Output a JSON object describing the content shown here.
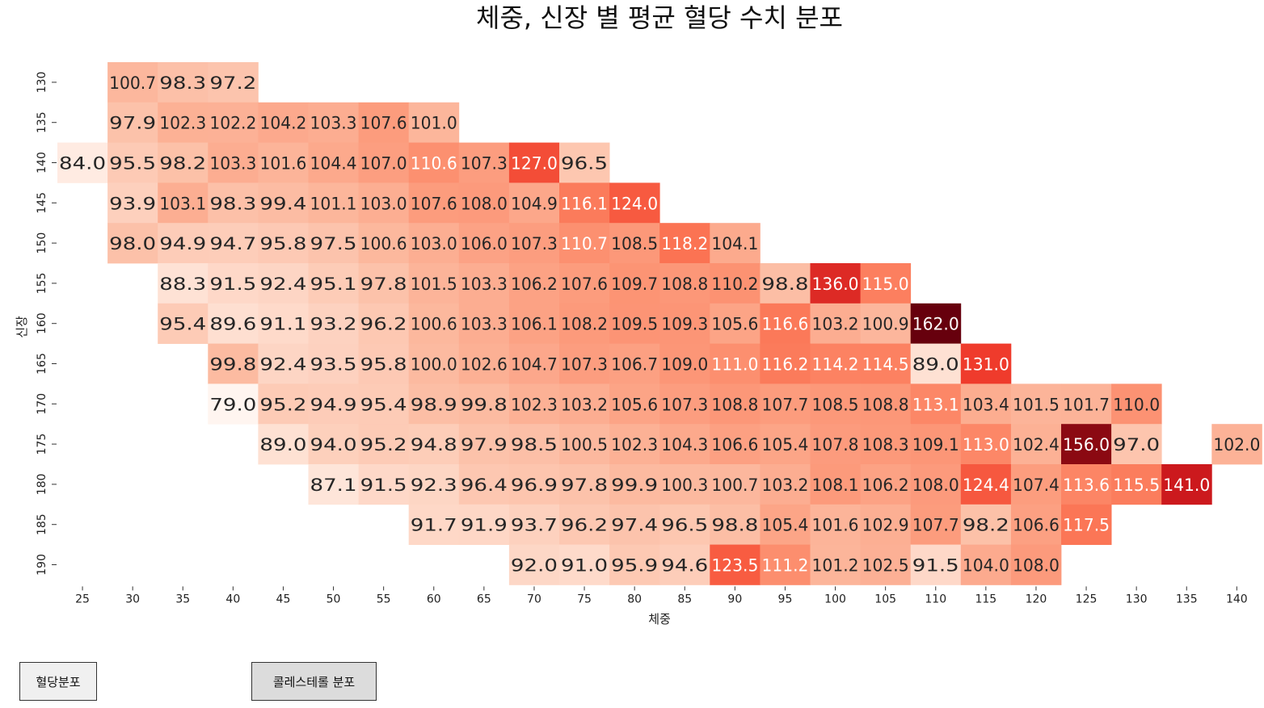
{
  "chart_data": {
    "type": "heatmap",
    "title": "체중, 신장 별 평균 혈당 수치 분포",
    "xlabel": "체중",
    "ylabel": "신장",
    "x": [
      25,
      30,
      35,
      40,
      45,
      50,
      55,
      60,
      65,
      70,
      75,
      80,
      85,
      90,
      95,
      100,
      105,
      110,
      115,
      120,
      125,
      130,
      135,
      140
    ],
    "y": [
      130,
      135,
      140,
      145,
      150,
      155,
      160,
      165,
      170,
      175,
      180,
      185,
      190
    ],
    "colormap": "Reds",
    "value_range": [
      79.0,
      162.0
    ],
    "values": [
      [
        null,
        100.7,
        98.3,
        97.2,
        null,
        null,
        null,
        null,
        null,
        null,
        null,
        null,
        null,
        null,
        null,
        null,
        null,
        null,
        null,
        null,
        null,
        null,
        null,
        null
      ],
      [
        null,
        97.9,
        102.3,
        102.2,
        104.2,
        103.3,
        107.6,
        101.0,
        null,
        null,
        null,
        null,
        null,
        null,
        null,
        null,
        null,
        null,
        null,
        null,
        null,
        null,
        null,
        null
      ],
      [
        84.0,
        95.5,
        98.2,
        103.3,
        101.6,
        104.4,
        107.0,
        110.6,
        107.3,
        127.0,
        96.5,
        null,
        null,
        null,
        null,
        null,
        null,
        null,
        null,
        null,
        null,
        null,
        null,
        null
      ],
      [
        null,
        93.9,
        103.1,
        98.3,
        99.4,
        101.1,
        103.0,
        107.6,
        108.0,
        104.9,
        116.1,
        124.0,
        null,
        null,
        null,
        null,
        null,
        null,
        null,
        null,
        null,
        null,
        null,
        null
      ],
      [
        null,
        98.0,
        94.9,
        94.7,
        95.8,
        97.5,
        100.6,
        103.0,
        106.0,
        107.3,
        110.7,
        108.5,
        118.2,
        104.1,
        null,
        null,
        null,
        null,
        null,
        null,
        null,
        null,
        null,
        null
      ],
      [
        null,
        null,
        88.3,
        91.5,
        92.4,
        95.1,
        97.8,
        101.5,
        103.3,
        106.2,
        107.6,
        109.7,
        108.8,
        110.2,
        98.8,
        136.0,
        115.0,
        null,
        null,
        null,
        null,
        null,
        null,
        null
      ],
      [
        null,
        null,
        95.4,
        89.6,
        91.1,
        93.2,
        96.2,
        100.6,
        103.3,
        106.1,
        108.2,
        109.5,
        109.3,
        105.6,
        116.6,
        103.2,
        100.9,
        162.0,
        null,
        null,
        null,
        null,
        null,
        null
      ],
      [
        null,
        null,
        null,
        99.8,
        92.4,
        93.5,
        95.8,
        100.0,
        102.6,
        104.7,
        107.3,
        106.7,
        109.0,
        111.0,
        116.2,
        114.2,
        114.5,
        89.0,
        131.0,
        null,
        null,
        null,
        null,
        null
      ],
      [
        null,
        null,
        null,
        79.0,
        95.2,
        94.9,
        95.4,
        98.9,
        99.8,
        102.3,
        103.2,
        105.6,
        107.3,
        108.8,
        107.7,
        108.5,
        108.8,
        113.1,
        103.4,
        101.5,
        101.7,
        110.0,
        null,
        null
      ],
      [
        null,
        null,
        null,
        null,
        89.0,
        94.0,
        95.2,
        94.8,
        97.9,
        98.5,
        100.5,
        102.3,
        104.3,
        106.6,
        105.4,
        107.8,
        108.3,
        109.1,
        113.0,
        102.4,
        156.0,
        97.0,
        null,
        102.0
      ],
      [
        null,
        null,
        null,
        null,
        null,
        87.1,
        91.5,
        92.3,
        96.4,
        96.9,
        97.8,
        99.9,
        100.3,
        100.7,
        103.2,
        108.1,
        106.2,
        108.0,
        124.4,
        107.4,
        113.6,
        115.5,
        141.0,
        null
      ],
      [
        null,
        null,
        null,
        null,
        null,
        null,
        null,
        91.7,
        91.9,
        93.7,
        96.2,
        97.4,
        96.5,
        98.8,
        105.4,
        101.6,
        102.9,
        107.7,
        98.2,
        106.6,
        117.5,
        null,
        null,
        null
      ],
      [
        null,
        null,
        null,
        null,
        null,
        null,
        null,
        null,
        null,
        92.0,
        91.0,
        95.9,
        94.6,
        123.5,
        111.2,
        101.2,
        102.5,
        91.5,
        104.0,
        108.0,
        null,
        null,
        null,
        null
      ]
    ]
  },
  "buttons": {
    "glucose_label": "혈당분포",
    "cholesterol_label": "콜레스테롤 분포"
  }
}
